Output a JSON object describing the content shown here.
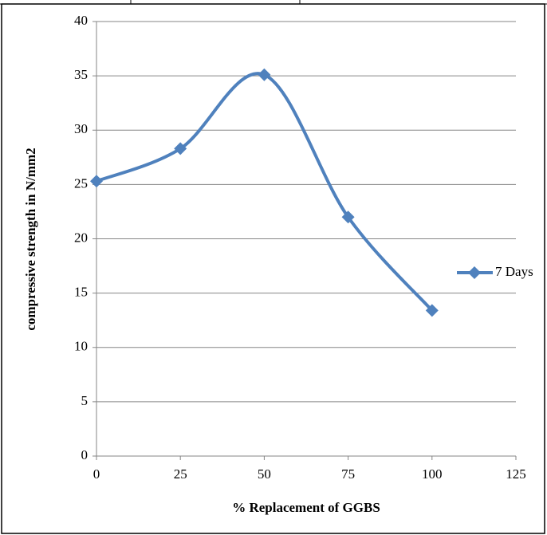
{
  "chart_data": {
    "type": "line",
    "x": [
      0,
      25,
      50,
      75,
      100
    ],
    "series": [
      {
        "name": "7 Days",
        "color": "#4f81bd",
        "values": [
          25.3,
          28.3,
          35.1,
          22.0,
          13.4
        ]
      }
    ],
    "xlim": [
      0,
      125
    ],
    "xticks": [
      0,
      25,
      50,
      75,
      100,
      125
    ],
    "ylim": [
      0,
      40
    ],
    "yticks": [
      0,
      5,
      10,
      15,
      20,
      25,
      30,
      35,
      40
    ],
    "xlabel": "% Replacement of  GGBS",
    "ylabel": "compressive strength in N/mm2",
    "grid": true,
    "legend": "right"
  }
}
